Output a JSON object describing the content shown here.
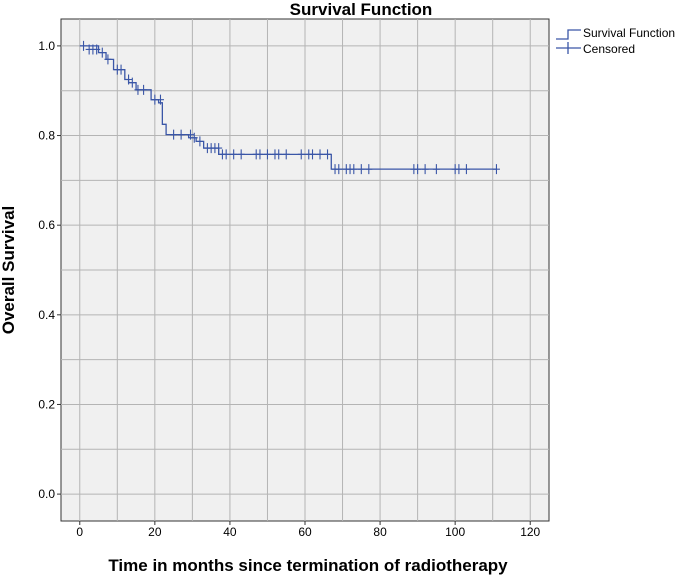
{
  "chart_data": {
    "type": "line",
    "title": "Survival Function",
    "xlabel": "Time in months since termination of radiotherapy",
    "ylabel": "Overall Survival",
    "xlim": [
      -5,
      125
    ],
    "ylim": [
      -0.06,
      1.06
    ],
    "x_ticks": [
      0,
      20,
      40,
      60,
      80,
      100,
      120
    ],
    "x_tick_labels": [
      "0",
      "20",
      "40",
      "60",
      "80",
      "100",
      "120"
    ],
    "y_ticks": [
      0.0,
      0.2,
      0.4,
      0.6,
      0.8,
      1.0
    ],
    "y_tick_labels": [
      "0.0",
      "0.2",
      "0.4",
      "0.6",
      "0.8",
      "1.0"
    ],
    "x_grid": [
      0,
      10,
      20,
      30,
      40,
      50,
      60,
      70,
      80,
      90,
      100,
      110,
      120
    ],
    "y_grid": [
      0.0,
      0.1,
      0.2,
      0.3,
      0.4,
      0.5,
      0.6,
      0.7,
      0.8,
      0.9,
      1.0
    ],
    "grid": true,
    "legend_position": "top-right",
    "colors": {
      "series": "#3a56a7",
      "plot_bg": "#f0f0f0",
      "grid": "#b4b4b4"
    },
    "series": [
      {
        "name": "Survival Function",
        "style": "step",
        "x": [
          0,
          5,
          7,
          9,
          12,
          13,
          15,
          19,
          21,
          22,
          23,
          29,
          31,
          33,
          37,
          67,
          111
        ],
        "y": [
          1.0,
          0.985,
          0.97,
          0.947,
          0.925,
          0.918,
          0.902,
          0.88,
          0.873,
          0.825,
          0.802,
          0.795,
          0.787,
          0.772,
          0.758,
          0.725,
          0.725
        ]
      },
      {
        "name": "Censored",
        "style": "markers",
        "x": [
          1,
          2.5,
          3.5,
          4.5,
          6,
          7.5,
          10,
          11,
          13,
          14,
          15.5,
          17,
          20,
          21.5,
          25,
          27,
          29.5,
          30.5,
          32,
          34,
          35,
          36,
          37,
          38,
          39,
          41,
          43,
          47,
          48,
          50,
          52,
          53,
          55,
          59,
          61,
          62,
          64,
          66,
          68,
          69,
          71,
          72,
          73,
          75,
          77,
          89,
          90,
          92,
          95,
          100,
          101,
          103,
          111
        ],
        "y": [
          1.0,
          0.992,
          0.992,
          0.992,
          0.985,
          0.97,
          0.947,
          0.947,
          0.925,
          0.918,
          0.902,
          0.902,
          0.88,
          0.88,
          0.802,
          0.802,
          0.802,
          0.795,
          0.787,
          0.772,
          0.772,
          0.772,
          0.772,
          0.758,
          0.758,
          0.758,
          0.758,
          0.758,
          0.758,
          0.758,
          0.758,
          0.758,
          0.758,
          0.758,
          0.758,
          0.758,
          0.758,
          0.758,
          0.725,
          0.725,
          0.725,
          0.725,
          0.725,
          0.725,
          0.725,
          0.725,
          0.725,
          0.725,
          0.725,
          0.725,
          0.725,
          0.725,
          0.725
        ]
      }
    ]
  }
}
